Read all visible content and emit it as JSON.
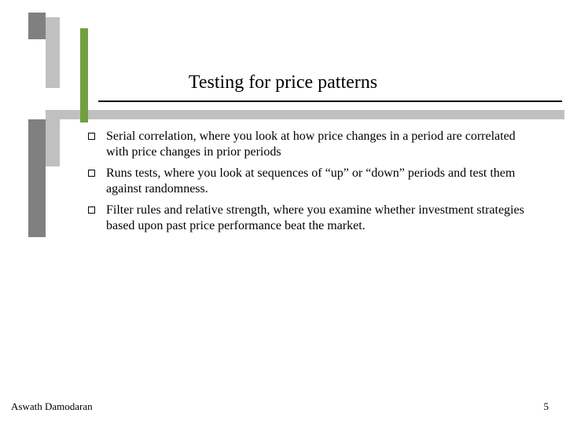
{
  "title": "Testing for price patterns",
  "bullets": [
    "Serial correlation, where you look at how price changes in a period are correlated with price changes in prior periods",
    "Runs tests, where you look at sequences of “up” or “down” periods and test them against randomness.",
    "Filter rules and relative strength, where you examine whether investment strategies based upon past price performance beat the market."
  ],
  "footer": {
    "author": "Aswath Damodaran",
    "page": "5"
  },
  "colors": {
    "dark_grey": "#808080",
    "light_grey": "#c0c0c0",
    "accent_green": "#71a040",
    "rule": "#000000",
    "background": "#ffffff"
  }
}
